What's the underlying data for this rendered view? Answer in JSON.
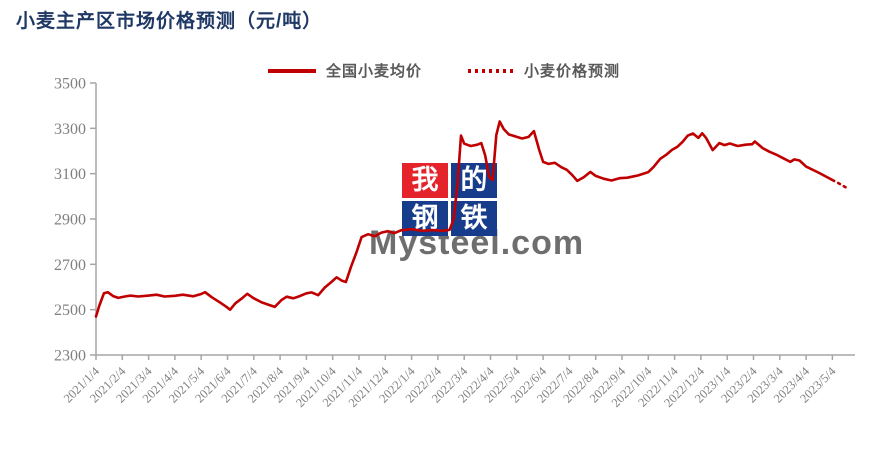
{
  "title": "小麦主产区市场价格预测（元/吨）",
  "colors": {
    "title": "#1f3864",
    "line": "#c00000",
    "axis": "#a6a6a6",
    "tick_label": "#808080",
    "legend_text": "#595959",
    "logo_red": "#e5232b",
    "logo_blue": "#173c8c",
    "watermark": "#4a4a4a"
  },
  "watermark": {
    "logo_chars": [
      "我",
      "的",
      "钢",
      "铁"
    ],
    "text": "Mysteel.com"
  },
  "chart_data": {
    "type": "line",
    "title": "小麦主产区市场价格预测（元/吨）",
    "xlabel": "",
    "ylabel": "",
    "ylim": [
      2300,
      3500
    ],
    "y_ticks": [
      2300,
      2500,
      2700,
      2900,
      3100,
      3300,
      3500
    ],
    "grid": false,
    "legend_position": "top-center",
    "x_tick_labels": [
      "2021/1/4",
      "2021/2/4",
      "2021/3/4",
      "2021/4/4",
      "2021/5/4",
      "2021/6/4",
      "2021/7/4",
      "2021/8/4",
      "2021/9/4",
      "2021/10/4",
      "2021/11/4",
      "2021/12/4",
      "2022/1/4",
      "2022/2/4",
      "2022/3/4",
      "2022/4/4",
      "2022/5/4",
      "2022/6/4",
      "2022/7/4",
      "2022/8/4",
      "2022/9/4",
      "2022/10/4",
      "2022/11/4",
      "2022/12/4",
      "2023/1/4",
      "2023/2/4",
      "2023/3/4",
      "2023/4/4",
      "2023/5/4"
    ],
    "series": [
      {
        "name": "全国小麦均价",
        "style": "solid",
        "color": "#c00000",
        "points": [
          [
            0,
            2470
          ],
          [
            0.12,
            2516
          ],
          [
            0.3,
            2572
          ],
          [
            0.45,
            2577
          ],
          [
            0.65,
            2560
          ],
          [
            0.85,
            2552
          ],
          [
            1.0,
            2556
          ],
          [
            1.3,
            2562
          ],
          [
            1.6,
            2558
          ],
          [
            2.0,
            2562
          ],
          [
            2.3,
            2566
          ],
          [
            2.6,
            2558
          ],
          [
            3.0,
            2561
          ],
          [
            3.3,
            2566
          ],
          [
            3.7,
            2559
          ],
          [
            4.0,
            2569
          ],
          [
            4.15,
            2577
          ],
          [
            4.4,
            2555
          ],
          [
            4.7,
            2533
          ],
          [
            4.95,
            2513
          ],
          [
            5.1,
            2500
          ],
          [
            5.3,
            2528
          ],
          [
            5.55,
            2550
          ],
          [
            5.75,
            2570
          ],
          [
            6.0,
            2550
          ],
          [
            6.3,
            2532
          ],
          [
            6.6,
            2520
          ],
          [
            6.8,
            2512
          ],
          [
            7.05,
            2542
          ],
          [
            7.25,
            2557
          ],
          [
            7.5,
            2550
          ],
          [
            7.75,
            2560
          ],
          [
            8.0,
            2572
          ],
          [
            8.2,
            2576
          ],
          [
            8.45,
            2564
          ],
          [
            8.7,
            2598
          ],
          [
            8.95,
            2622
          ],
          [
            9.15,
            2643
          ],
          [
            9.35,
            2628
          ],
          [
            9.5,
            2622
          ],
          [
            9.7,
            2690
          ],
          [
            9.9,
            2752
          ],
          [
            10.1,
            2820
          ],
          [
            10.35,
            2833
          ],
          [
            10.6,
            2824
          ],
          [
            10.85,
            2840
          ],
          [
            11.1,
            2846
          ],
          [
            11.35,
            2838
          ],
          [
            11.6,
            2850
          ],
          [
            12.0,
            2855
          ],
          [
            12.4,
            2848
          ],
          [
            12.8,
            2851
          ],
          [
            13.2,
            2848
          ],
          [
            13.45,
            2853
          ],
          [
            13.6,
            2900
          ],
          [
            13.75,
            3060
          ],
          [
            13.88,
            3268
          ],
          [
            14.0,
            3232
          ],
          [
            14.25,
            3222
          ],
          [
            14.5,
            3228
          ],
          [
            14.65,
            3235
          ],
          [
            14.8,
            3180
          ],
          [
            14.95,
            3085
          ],
          [
            15.08,
            3072
          ],
          [
            15.22,
            3270
          ],
          [
            15.35,
            3330
          ],
          [
            15.5,
            3297
          ],
          [
            15.7,
            3273
          ],
          [
            15.85,
            3268
          ],
          [
            16.0,
            3262
          ],
          [
            16.2,
            3255
          ],
          [
            16.45,
            3262
          ],
          [
            16.65,
            3288
          ],
          [
            16.85,
            3205
          ],
          [
            17.0,
            3152
          ],
          [
            17.2,
            3143
          ],
          [
            17.45,
            3148
          ],
          [
            17.7,
            3128
          ],
          [
            17.9,
            3117
          ],
          [
            18.1,
            3095
          ],
          [
            18.3,
            3068
          ],
          [
            18.55,
            3085
          ],
          [
            18.8,
            3108
          ],
          [
            19.0,
            3090
          ],
          [
            19.3,
            3078
          ],
          [
            19.6,
            3070
          ],
          [
            19.9,
            3080
          ],
          [
            20.2,
            3082
          ],
          [
            20.6,
            3092
          ],
          [
            21.0,
            3107
          ],
          [
            21.2,
            3130
          ],
          [
            21.45,
            3165
          ],
          [
            21.7,
            3185
          ],
          [
            21.9,
            3205
          ],
          [
            22.1,
            3218
          ],
          [
            22.3,
            3240
          ],
          [
            22.5,
            3268
          ],
          [
            22.7,
            3277
          ],
          [
            22.9,
            3258
          ],
          [
            23.05,
            3278
          ],
          [
            23.2,
            3257
          ],
          [
            23.45,
            3204
          ],
          [
            23.7,
            3235
          ],
          [
            23.9,
            3226
          ],
          [
            24.1,
            3233
          ],
          [
            24.4,
            3222
          ],
          [
            24.7,
            3228
          ],
          [
            24.95,
            3230
          ],
          [
            25.05,
            3242
          ],
          [
            25.35,
            3213
          ],
          [
            25.6,
            3197
          ],
          [
            25.9,
            3182
          ],
          [
            26.1,
            3170
          ],
          [
            26.4,
            3152
          ],
          [
            26.55,
            3163
          ],
          [
            26.75,
            3158
          ],
          [
            27.0,
            3131
          ],
          [
            27.5,
            3103
          ],
          [
            28.0,
            3072
          ]
        ]
      },
      {
        "name": "小麦价格预测",
        "style": "dotted",
        "color": "#c00000",
        "points": [
          [
            28.0,
            3072
          ],
          [
            28.2,
            3060
          ],
          [
            28.4,
            3047
          ],
          [
            28.62,
            3032
          ]
        ]
      }
    ]
  }
}
